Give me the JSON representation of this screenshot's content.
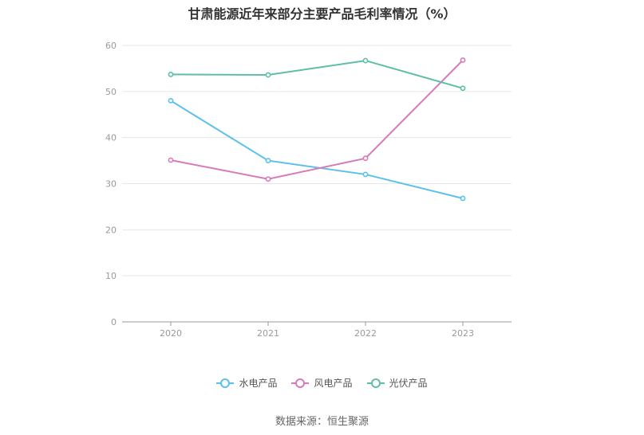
{
  "chart_data": {
    "type": "line",
    "title": "甘肃能源近年来部分主要产品毛利率情况（%）",
    "categories": [
      "2020",
      "2021",
      "2022",
      "2023"
    ],
    "series": [
      {
        "name": "水电产品",
        "color": "#5bc0eb",
        "values": [
          48.0,
          35.0,
          32.0,
          26.8
        ]
      },
      {
        "name": "风电产品",
        "color": "#d97ab8",
        "values": [
          35.1,
          31.0,
          35.5,
          56.8
        ]
      },
      {
        "name": "光伏产品",
        "color": "#5dbfa6",
        "values": [
          53.7,
          53.6,
          56.7,
          50.7
        ]
      }
    ],
    "ylim": [
      0,
      60
    ],
    "yticks": [
      0,
      10,
      20,
      30,
      40,
      50,
      60
    ],
    "grid": true,
    "legend_position": "bottom"
  },
  "source": "数据来源：恒生聚源"
}
